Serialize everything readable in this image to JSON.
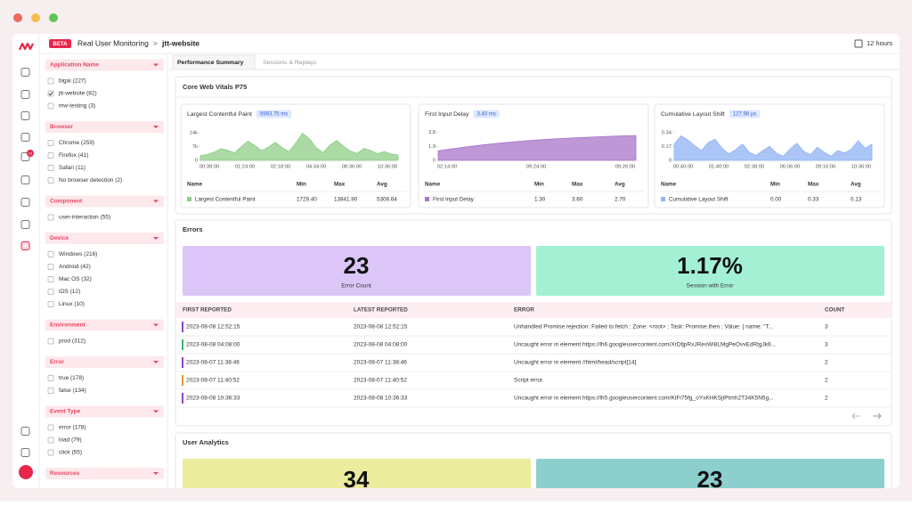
{
  "header": {
    "badge": "BETA",
    "title": "Real User Monitoring",
    "separator": ">",
    "page": "jtt-website",
    "time_range": "12 hours"
  },
  "nav": {
    "notification_count": "10"
  },
  "filters": [
    {
      "title": "Application Name",
      "options": [
        {
          "label": "bigai (227)",
          "checked": false
        },
        {
          "label": "jtt-website (82)",
          "checked": true
        },
        {
          "label": "mw-testing (3)",
          "checked": false
        }
      ]
    },
    {
      "title": "Browser",
      "options": [
        {
          "label": "Chrome (259)",
          "checked": false
        },
        {
          "label": "Firefox (41)",
          "checked": false
        },
        {
          "label": "Safari (11)",
          "checked": false
        },
        {
          "label": "No browser detection (2)",
          "checked": false
        }
      ]
    },
    {
      "title": "Component",
      "options": [
        {
          "label": "user-interaction (55)",
          "checked": false
        }
      ]
    },
    {
      "title": "Device",
      "options": [
        {
          "label": "Windows (216)",
          "checked": false
        },
        {
          "label": "Android (42)",
          "checked": false
        },
        {
          "label": "Mac OS (32)",
          "checked": false
        },
        {
          "label": "iOS (12)",
          "checked": false
        },
        {
          "label": "Linux (10)",
          "checked": false
        }
      ]
    },
    {
      "title": "Environment",
      "options": [
        {
          "label": "prod (312)",
          "checked": false
        }
      ]
    },
    {
      "title": "Error",
      "options": [
        {
          "label": "true (178)",
          "checked": false
        },
        {
          "label": "false (134)",
          "checked": false
        }
      ]
    },
    {
      "title": "Event Type",
      "options": [
        {
          "label": "error (178)",
          "checked": false
        },
        {
          "label": "load (79)",
          "checked": false
        },
        {
          "label": "click (55)",
          "checked": false
        }
      ]
    },
    {
      "title": "Resources",
      "options": []
    }
  ],
  "tabs": [
    {
      "label": "Performance Summary",
      "active": true
    },
    {
      "label": "Sessions & Replays",
      "active": false
    }
  ],
  "web_vitals": {
    "title": "Core Web Vitals P75",
    "table_headers": [
      "Name",
      "Min",
      "Max",
      "Avg"
    ],
    "metrics": [
      {
        "name": "Largest Contentful Paint",
        "badge": "5983.75 ms",
        "color": "#8fce87",
        "chart": {
          "type": "area",
          "ylim": [
            0,
            15000
          ],
          "yticks": [
            0,
            {
              "value": 7000,
              "label": "7k"
            },
            {
              "value": 14000,
              "label": "14k"
            }
          ],
          "x_labels": [
            "00:38:00",
            "01:24:00",
            "02:18:00",
            "04:34:00",
            "08:36:00",
            "10:36:00"
          ],
          "values": [
            2500,
            3000,
            4200,
            6000,
            5200,
            3800,
            7000,
            9800,
            7500,
            5000,
            6800,
            9200,
            6500,
            4500,
            9000,
            13800,
            11000,
            6500,
            4000,
            7800,
            10200,
            7200,
            4800,
            3500,
            6200,
            5000,
            3400,
            4500,
            3200,
            2800
          ]
        },
        "row": [
          "Largest Contentful Paint",
          "1729.40",
          "13841.90",
          "5308.64"
        ]
      },
      {
        "name": "First Input Delay",
        "badge": "3.40 ms",
        "color": "#a874c8",
        "chart": {
          "type": "area",
          "ylim": [
            0,
            4
          ],
          "yticks": [
            0,
            1.9,
            3.8
          ],
          "x_labels": [
            "02:14:00",
            "09:24:00",
            "09:26:00"
          ],
          "values": [
            1.3,
            1.55,
            1.8,
            2.02,
            2.22,
            2.4,
            2.56,
            2.7,
            2.82,
            2.93,
            3.03,
            3.12,
            3.2,
            3.27,
            3.33,
            3.38
          ]
        },
        "row": [
          "First Input Delay",
          "1.30",
          "3.60",
          "2.70"
        ]
      },
      {
        "name": "Cumulative Layout Shift",
        "badge": "127.98 µs",
        "color": "#8fb3f3",
        "chart": {
          "type": "area",
          "ylim": [
            0,
            0.36
          ],
          "yticks": [
            0,
            0.17,
            0.34
          ],
          "x_labels": [
            "00:40:00",
            "01:40:00",
            "02:38:00",
            "06:06:00",
            "09:16:00",
            "10:36:00"
          ],
          "values": [
            0.2,
            0.3,
            0.25,
            0.18,
            0.12,
            0.22,
            0.26,
            0.15,
            0.08,
            0.13,
            0.2,
            0.1,
            0.06,
            0.12,
            0.17,
            0.09,
            0.05,
            0.14,
            0.21,
            0.11,
            0.07,
            0.16,
            0.1,
            0.05,
            0.12,
            0.09,
            0.14,
            0.24,
            0.15,
            0.2
          ]
        },
        "row": [
          "Cumulative Layout Shift",
          "0.00",
          "0.33",
          "0.13"
        ]
      }
    ]
  },
  "errors": {
    "title": "Errors",
    "tiles": [
      {
        "value": "23",
        "label": "Error Count",
        "color": "#dcc6f7"
      },
      {
        "value": "1.17%",
        "label": "Session with Error",
        "color": "#a3f0d4"
      }
    ],
    "table": {
      "headers": [
        "FIRST REPORTED",
        "LATEST REPORTED",
        "ERROR",
        "COUNT"
      ],
      "rows": [
        {
          "first": "2023-08-08 12:52:15",
          "latest": "2023-08-08 12:52:15",
          "error": "Unhandled Promise rejection: Failed to fetch ; Zone: <root> ; Task: Promise.then ; Value: { name: \"T...",
          "count": 3,
          "color": "#8e44c8"
        },
        {
          "first": "2023-08-08 04:08:00",
          "latest": "2023-08-08 04:08:00",
          "error": "Uncaught error in element https://lh6.googleusercontent.com/XrDfjpRxJResWi8LMgPeOvvEdRtgJk6...",
          "count": 3,
          "color": "#3cb46e"
        },
        {
          "first": "2023-08-07 11:38:46",
          "latest": "2023-08-07 11:38:46",
          "error": "Uncaught error in element //html/head/script[14]",
          "count": 2,
          "color": "#8e44c8"
        },
        {
          "first": "2023-08-07 11:40:52",
          "latest": "2023-08-07 11:40:52",
          "error": "Script error.",
          "count": 2,
          "color": "#e0a030"
        },
        {
          "first": "2023-08-08 10:36:33",
          "latest": "2023-08-08 10:36:33",
          "error": "Uncaught error in element https://lh5.googleusercontent.com/KtFi75fg_oYxKHKSjtPtmh2T34K5N5g...",
          "count": 2,
          "color": "#8e44c8"
        }
      ]
    }
  },
  "user_analytics": {
    "title": "User Analytics",
    "tiles": [
      {
        "value": "34",
        "color": "#ecec9e"
      },
      {
        "value": "23",
        "color": "#8ccfcd"
      }
    ]
  }
}
